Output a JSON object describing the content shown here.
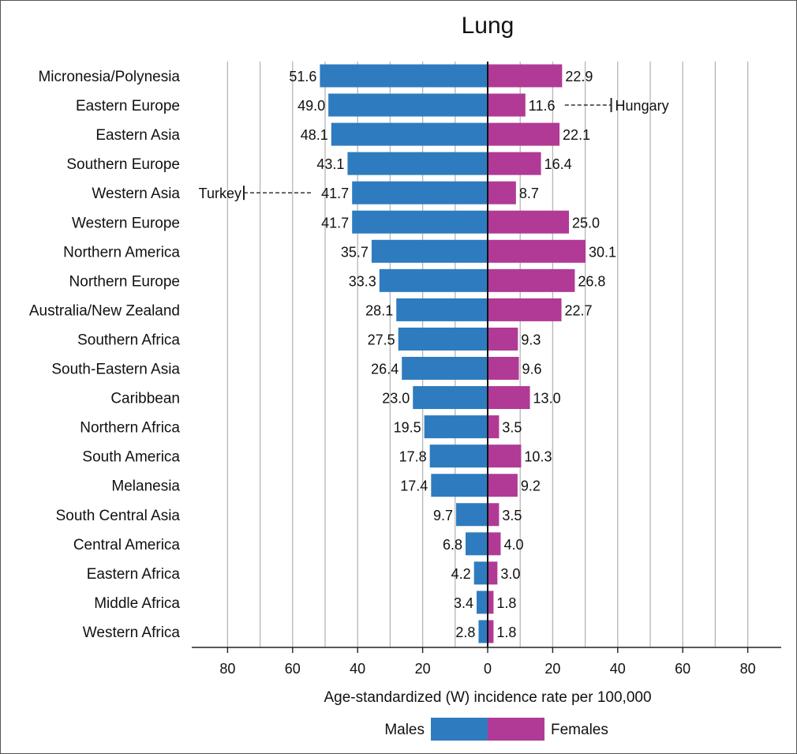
{
  "chart_data": {
    "type": "bar",
    "title": "Lung",
    "xlabel": "Age-standardized (W) incidence rate per 100,000",
    "xlim": [
      -90,
      90
    ],
    "xticks": [
      "80",
      "60",
      "40",
      "20",
      "0",
      "20",
      "40",
      "60",
      "80"
    ],
    "grid": true,
    "legend_position": "bottom",
    "categories": [
      "Micronesia/Polynesia",
      "Eastern Europe",
      "Eastern Asia",
      "Southern Europe",
      "Western Asia",
      "Western Europe",
      "Northern America",
      "Northern Europe",
      "Australia/New Zealand",
      "Southern Africa",
      "South-Eastern Asia",
      "Caribbean",
      "Northern Africa",
      "South America",
      "Melanesia",
      "South Central Asia",
      "Central America",
      "Eastern Africa",
      "Middle Africa",
      "Western Africa"
    ],
    "series": [
      {
        "name": "Males",
        "color": "#2f7bbf",
        "values": [
          51.6,
          49.0,
          48.1,
          43.1,
          41.7,
          41.7,
          35.7,
          33.3,
          28.1,
          27.5,
          26.4,
          23.0,
          19.5,
          17.8,
          17.4,
          9.7,
          6.8,
          4.2,
          3.4,
          2.8
        ],
        "labels": [
          "51.6",
          "49.0",
          "48.1",
          "43.1",
          "41.7",
          "41.7",
          "35.7",
          "33.3",
          "28.1",
          "27.5",
          "26.4",
          "23.0",
          "19.5",
          "17.8",
          "17.4",
          "9.7",
          "6.8",
          "4.2",
          "3.4",
          "2.8"
        ]
      },
      {
        "name": "Females",
        "color": "#b03a96",
        "values": [
          22.9,
          11.6,
          22.1,
          16.4,
          8.7,
          25.0,
          30.1,
          26.8,
          22.7,
          9.3,
          9.6,
          13.0,
          3.5,
          10.3,
          9.2,
          3.5,
          4.0,
          3.0,
          1.8,
          1.8
        ],
        "labels": [
          "22.9",
          "11.6",
          "22.1",
          "16.4",
          "8.7",
          "25.0",
          "30.1",
          "26.8",
          "22.7",
          "9.3",
          "9.6",
          "13.0",
          "3.5",
          "10.3",
          "9.2",
          "3.5",
          "4.0",
          "3.0",
          "1.8",
          "1.8"
        ]
      }
    ],
    "annotations": [
      {
        "text": "Turkey",
        "category": "Western Asia",
        "series": "Males",
        "value": 75
      },
      {
        "text": "Hungary",
        "category": "Eastern Europe",
        "series": "Females",
        "value": 38
      }
    ]
  }
}
